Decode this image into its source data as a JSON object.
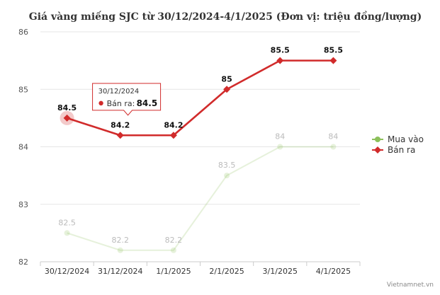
{
  "chart_data": {
    "type": "line",
    "title": "Giá vàng miếng SJC từ 30/12/2024-4/1/2025 (Đơn vị: triệu đồng/lượng)",
    "categories": [
      "30/12/2024",
      "31/12/2024",
      "1/1/2025",
      "2/1/2025",
      "3/1/2025",
      "4/1/2025"
    ],
    "series": [
      {
        "name": "Mua vào",
        "values": [
          82.5,
          82.2,
          82.2,
          83.5,
          84,
          84
        ],
        "color": "#8cc05a",
        "faded": true
      },
      {
        "name": "Bán ra",
        "values": [
          84.5,
          84.2,
          84.2,
          85,
          85.5,
          85.5
        ],
        "color": "#d12b2b",
        "faded": false
      }
    ],
    "ylim": [
      82,
      86
    ],
    "yticks": [
      82,
      83,
      84,
      85,
      86
    ],
    "grid": true,
    "legend_position": "right",
    "tooltip": {
      "category": "30/12/2024",
      "series": "Bán ra",
      "value": "84.5"
    },
    "credit": "Vietnamnet.vn"
  }
}
